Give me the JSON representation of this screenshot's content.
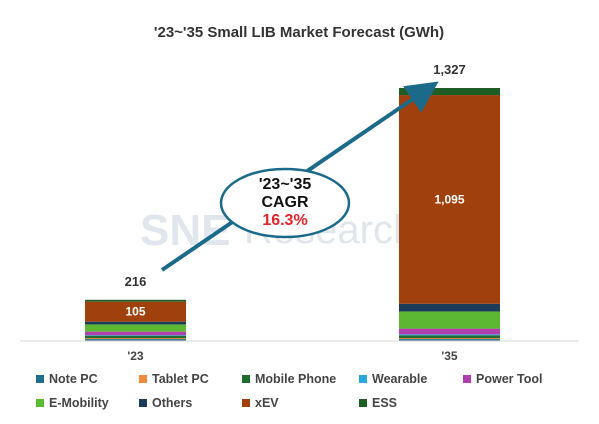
{
  "chart_data": {
    "type": "bar",
    "stacked": true,
    "title": "'23~'35 Small LIB Market Forecast (GWh)",
    "categories": [
      "'23",
      "'35"
    ],
    "series": [
      {
        "name": "Note PC",
        "color": "#1f6e8c",
        "values": [
          10,
          10
        ]
      },
      {
        "name": "Tablet PC",
        "color": "#f08a3c",
        "values": [
          5,
          5
        ]
      },
      {
        "name": "Mobile Phone",
        "color": "#1d6b2e",
        "values": [
          13,
          15
        ]
      },
      {
        "name": "Wearable",
        "color": "#2aa7de",
        "values": [
          3,
          5
        ]
      },
      {
        "name": "Power Tool",
        "color": "#b23fb0",
        "values": [
          18,
          30
        ]
      },
      {
        "name": "E-Mobility",
        "color": "#5cb833",
        "values": [
          38,
          90
        ]
      },
      {
        "name": "Others",
        "color": "#1c3b5a",
        "values": [
          14,
          40
        ]
      },
      {
        "name": "xEV",
        "color": "#a0410d",
        "values": [
          105,
          1095
        ]
      },
      {
        "name": "ESS",
        "color": "#1e5e24",
        "values": [
          10,
          37
        ]
      }
    ],
    "totals": [
      "216",
      "1,327"
    ],
    "data_labels": {
      "xEV": [
        "105",
        "1,095"
      ]
    },
    "ylim": [
      0,
      1327
    ],
    "legend_position": "bottom",
    "annotation": {
      "line1": "'23~'35",
      "line2": "CAGR",
      "value": "16.3%"
    },
    "watermark": {
      "part1": "SNE",
      "part2": "Research"
    }
  }
}
